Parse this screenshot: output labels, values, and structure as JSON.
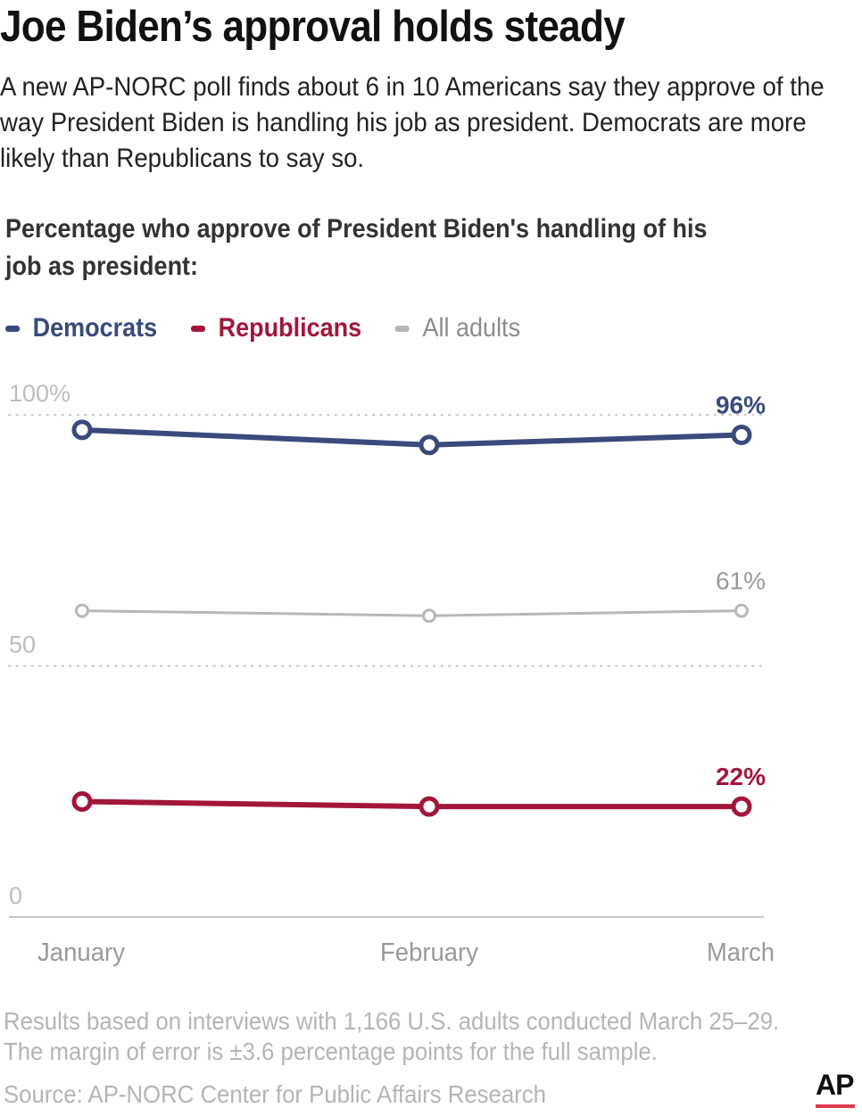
{
  "header": {
    "title": "Joe Biden’s approval holds steady",
    "subtitle": "A new AP-NORC poll finds about 6 in 10 Americans say they approve of the way President Biden is handling his job as president. Democrats are more likely than Republicans to say so."
  },
  "chart_data": {
    "type": "line",
    "title": "Percentage who approve of President Biden's handling of his job as president:",
    "x": [
      "January",
      "February",
      "March"
    ],
    "ylim": [
      0,
      100
    ],
    "y_ticks": [
      "100%",
      "50",
      "0"
    ],
    "y_tick_values": [
      100,
      50,
      0
    ],
    "grid": "dotted horizontal",
    "legend_position": "top-left",
    "series": [
      {
        "name": "Democrats",
        "key": "dem",
        "values": [
          97,
          94,
          96
        ],
        "color": "#3a4a7c",
        "end_label": "96%"
      },
      {
        "name": "All adults",
        "key": "all",
        "values": [
          61,
          60,
          61
        ],
        "color": "#b8b8b8",
        "end_label": "61%"
      },
      {
        "name": "Republicans",
        "key": "rep",
        "values": [
          23,
          22,
          22
        ],
        "color": "#a3163a",
        "end_label": "22%"
      }
    ]
  },
  "legend": {
    "democrats": "Democrats",
    "republicans": "Republicans",
    "all_adults": "All adults"
  },
  "footer": {
    "note_line1": "Results based on interviews with 1,166 U.S. adults conducted March 25–29.",
    "note_line2": "The margin of error is ±3.6 percentage points for the full sample.",
    "source": "Source: AP-NORC Center for Public Affairs Research",
    "logo": "AP",
    "accent_color": "#e03a4f"
  }
}
